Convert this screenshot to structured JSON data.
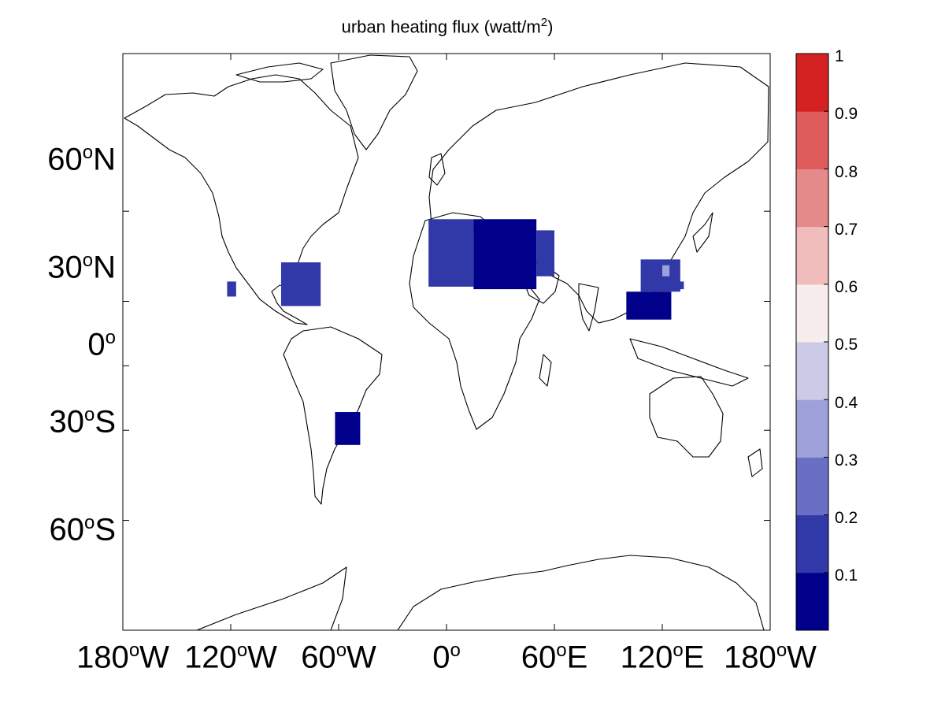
{
  "title": {
    "text": "urban heating flux (watt/m",
    "superscript": "2",
    "suffix": ")"
  },
  "lat_labels": [
    {
      "deg": "60",
      "degree_mark": "o",
      "hemi": "N"
    },
    {
      "deg": "30",
      "degree_mark": "o",
      "hemi": "N"
    },
    {
      "deg": "0",
      "degree_mark": "o",
      "hemi": ""
    },
    {
      "deg": "30",
      "degree_mark": "o",
      "hemi": "S"
    },
    {
      "deg": "60",
      "degree_mark": "o",
      "hemi": "S"
    }
  ],
  "lon_labels": [
    {
      "deg": "180",
      "degree_mark": "o",
      "hemi": "W"
    },
    {
      "deg": "120",
      "degree_mark": "o",
      "hemi": "W"
    },
    {
      "deg": "60",
      "degree_mark": "o",
      "hemi": "W"
    },
    {
      "deg": "0",
      "degree_mark": "o",
      "hemi": ""
    },
    {
      "deg": "60",
      "degree_mark": "o",
      "hemi": "E"
    },
    {
      "deg": "120",
      "degree_mark": "o",
      "hemi": "E"
    },
    {
      "deg": "180",
      "degree_mark": "o",
      "hemi": "W"
    }
  ],
  "colorbar": {
    "tick_labels": [
      "0.1",
      "0.2",
      "0.3",
      "0.4",
      "0.5",
      "0.6",
      "0.7",
      "0.8",
      "0.9",
      "1"
    ],
    "colors": [
      "#00008b",
      "#3138a8",
      "#6a6fc4",
      "#9ea1d9",
      "#cbcbe8",
      "#f7eded",
      "#f0bcbc",
      "#e58a8a",
      "#de5c5c",
      "#d42222"
    ]
  },
  "chart_data": {
    "type": "heatmap",
    "title": "urban heating flux (watt/m2)",
    "projection": "mercator",
    "lon_range": [
      -180,
      180
    ],
    "lat_range": [
      -78,
      82
    ],
    "lat_ticks": [
      60,
      30,
      0,
      -30,
      -60
    ],
    "lon_ticks": [
      -180,
      -120,
      -60,
      0,
      60,
      120,
      180
    ],
    "color_range": [
      0,
      1
    ],
    "nonzero_regions": [
      {
        "lon": [
          -92,
          -70
        ],
        "lat": [
          28,
          45
        ],
        "value": 0.15
      },
      {
        "lon": [
          -122,
          -117
        ],
        "lat": [
          32,
          38
        ],
        "value": 0.15
      },
      {
        "lon": [
          -62,
          -48
        ],
        "lat": [
          -36,
          -22
        ],
        "value": 0.05
      },
      {
        "lon": [
          -10,
          15
        ],
        "lat": [
          36,
          58
        ],
        "value": 0.15
      },
      {
        "lon": [
          15,
          50
        ],
        "lat": [
          35,
          58
        ],
        "value": 0.05
      },
      {
        "lon": [
          50,
          60
        ],
        "lat": [
          40,
          55
        ],
        "value": 0.15
      },
      {
        "lon": [
          100,
          125
        ],
        "lat": [
          22,
          34
        ],
        "value": 0.05
      },
      {
        "lon": [
          108,
          130
        ],
        "lat": [
          34,
          46
        ],
        "value": 0.15
      },
      {
        "lon": [
          120,
          124
        ],
        "lat": [
          40,
          44
        ],
        "value": 0.35
      },
      {
        "lon": [
          128,
          132
        ],
        "lat": [
          35,
          38
        ],
        "value": 0.15
      }
    ]
  }
}
